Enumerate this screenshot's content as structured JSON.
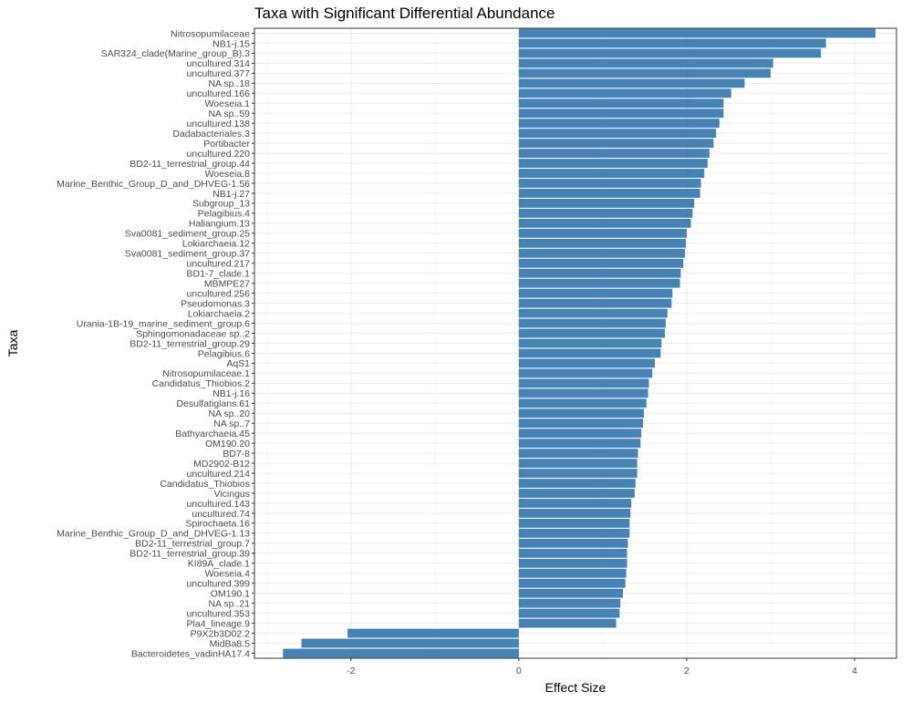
{
  "chart_data": {
    "type": "bar",
    "orientation": "horizontal",
    "title": "Taxa with Significant Differential Abundance",
    "xlabel": "Effect Size",
    "ylabel": "Taxa",
    "xlim": [
      -3.15,
      4.5
    ],
    "xticks": [
      -2,
      0,
      2,
      4
    ],
    "bar_color": "#4682b4",
    "grid": true,
    "categories": [
      "Nitrosopumilaceae",
      "NB1-j.15",
      "SAR324_clade(Marine_group_B).3",
      "uncultured.314",
      "uncultured.377",
      "NA sp..18",
      "uncultured.166",
      "Woeseia.1",
      "NA sp..59",
      "uncultured.138",
      "Dadabacteriales.3",
      "Portibacter",
      "uncultured.220",
      "BD2-11_terrestrial_group.44",
      "Woeseia.8",
      "Marine_Benthic_Group_D_and_DHVEG-1.56",
      "NB1-j.27",
      "Subgroup_13",
      "Pelagibius.4",
      "Haliangium.13",
      "Sva0081_sediment_group.25",
      "Lokiarchaeia.12",
      "Sva0081_sediment_group.37",
      "uncultured.217",
      "BD1-7_clade.1",
      "MBMPE27",
      "uncultured.256",
      "Pseudomonas.3",
      "Lokiarchaeia.2",
      "Urania-1B-19_marine_sediment_group.6",
      "Sphingomonadaceae sp..2",
      "BD2-11_terrestrial_group.29",
      "Pelagibius.6",
      "AqS1",
      "Nitrosopumilaceae.1",
      "Candidatus_Thiobios.2",
      "NB1-j.16",
      "Desulfatiglans.61",
      "NA sp..20",
      "NA sp..7",
      "Bathyarchaeia.45",
      "OM190.20",
      "BD7-8",
      "MD2902-B12",
      "uncultured.214",
      "Candidatus_Thiobios",
      "Vicingus",
      "uncultured.143",
      "uncultured.74",
      "Spirochaeta.16",
      "Marine_Benthic_Group_D_and_DHVEG-1.13",
      "BD2-11_terrestrial_group.7",
      "BD2-11_terrestrial_group.39",
      "KI89A_clade.1",
      "Woeseia.4",
      "uncultured.399",
      "OM190.1",
      "NA sp..21",
      "uncultured.353",
      "Pla4_lineage.9",
      "P9X2b3D02.2",
      "MidBa8.5",
      "Bacteroidetes_vadinHA17.4"
    ],
    "values": [
      4.25,
      3.66,
      3.6,
      3.03,
      3.0,
      2.69,
      2.53,
      2.44,
      2.44,
      2.39,
      2.35,
      2.32,
      2.27,
      2.25,
      2.21,
      2.17,
      2.16,
      2.09,
      2.07,
      2.05,
      2.0,
      1.99,
      1.98,
      1.96,
      1.93,
      1.92,
      1.83,
      1.82,
      1.77,
      1.75,
      1.74,
      1.7,
      1.69,
      1.62,
      1.59,
      1.55,
      1.54,
      1.52,
      1.49,
      1.48,
      1.46,
      1.45,
      1.42,
      1.41,
      1.41,
      1.39,
      1.38,
      1.34,
      1.33,
      1.32,
      1.32,
      1.3,
      1.29,
      1.29,
      1.28,
      1.27,
      1.24,
      1.21,
      1.2,
      1.16,
      -2.04,
      -2.59,
      -2.81
    ]
  }
}
